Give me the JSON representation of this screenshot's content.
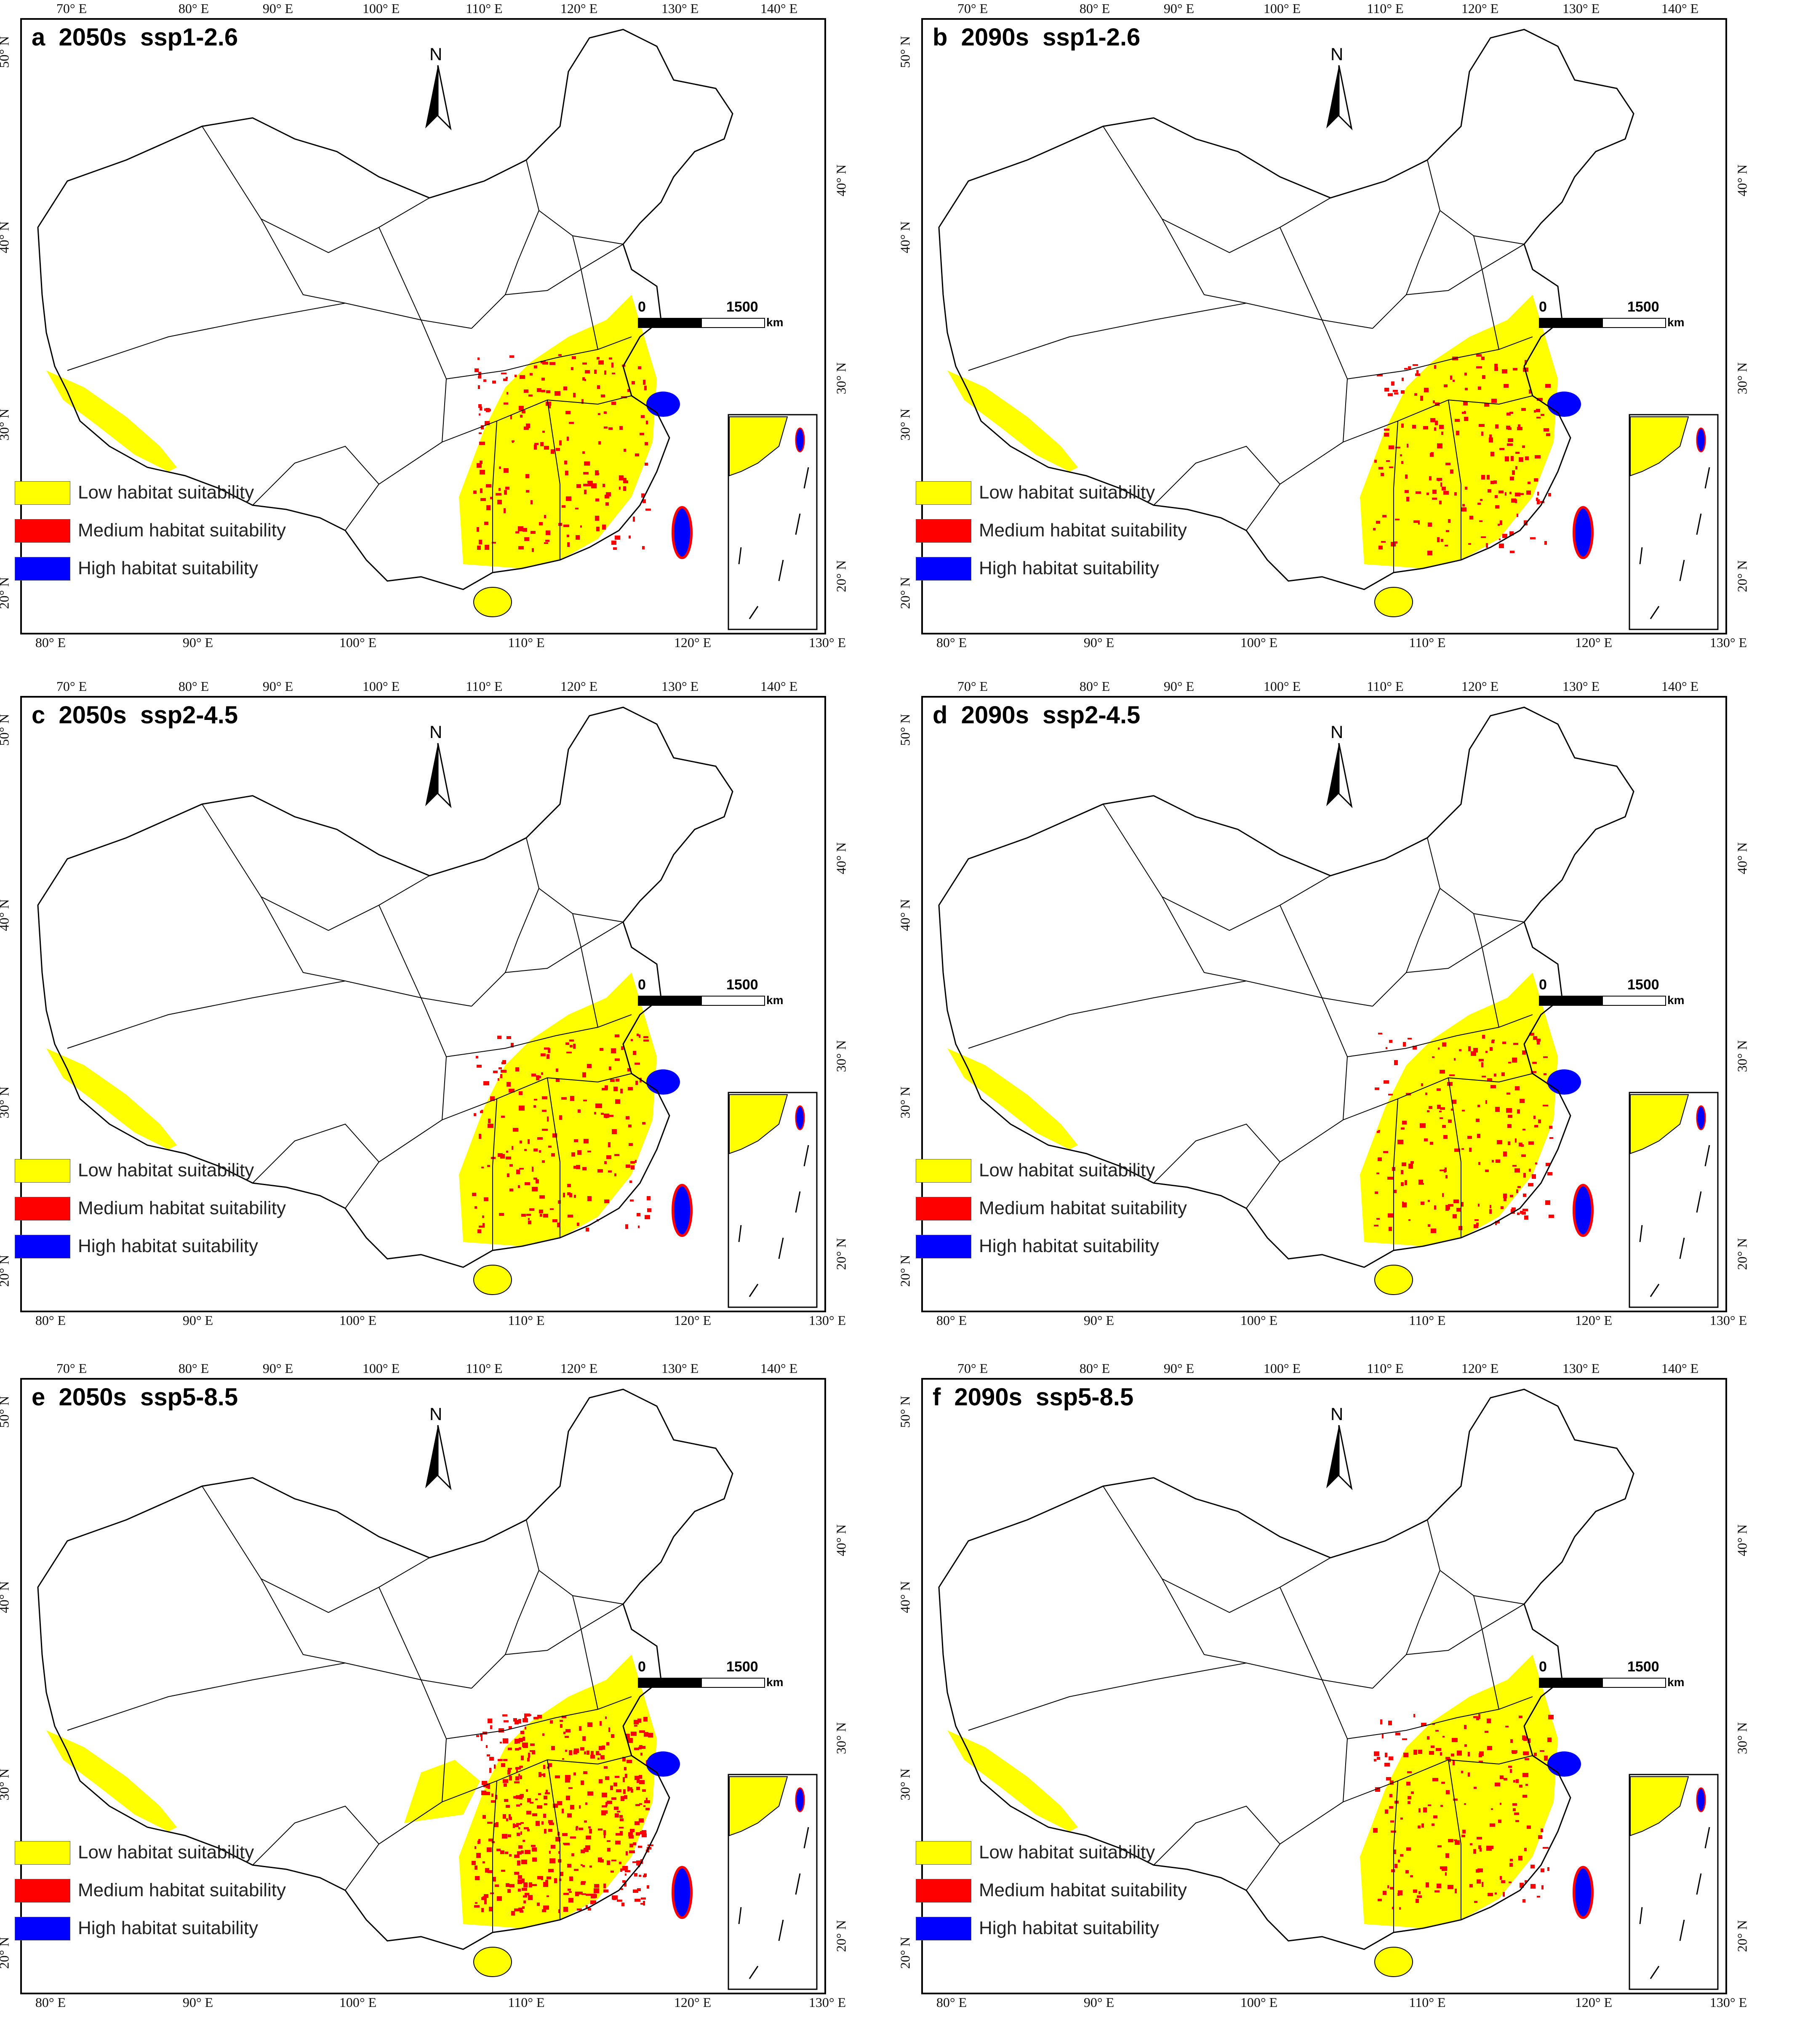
{
  "figure": {
    "panels": [
      {
        "id": "a",
        "title": "a  2050s  ssp1-2.6"
      },
      {
        "id": "b",
        "title": "b  2090s  ssp1-2.6"
      },
      {
        "id": "c",
        "title": "c  2050s  ssp2-4.5"
      },
      {
        "id": "d",
        "title": "d  2090s  ssp2-4.5"
      },
      {
        "id": "e",
        "title": "e  2050s  ssp5-8.5"
      },
      {
        "id": "f",
        "title": "f  2090s  ssp5-8.5"
      }
    ],
    "top_ticks": [
      "70° E",
      "80° E",
      "90° E",
      "100° E",
      "110° E",
      "120° E",
      "130° E",
      "140° E"
    ],
    "bottom_ticks": [
      "80° E",
      "90° E",
      "100° E",
      "110° E",
      "120° E",
      "130° E"
    ],
    "left_ticks": [
      "50° N",
      "40° N",
      "30° N",
      "20° N"
    ],
    "right_ticks": [
      "40° N",
      "30° N",
      "20° N"
    ],
    "legend": [
      {
        "label": "Low habitat suitability",
        "color": "#ffff00"
      },
      {
        "label": "Medium habitat suitability",
        "color": "#ff0000"
      },
      {
        "label": "High habitat suitability",
        "color": "#0000ff"
      }
    ],
    "scalebar": {
      "zero": "0",
      "max": "1500",
      "unit": "km"
    },
    "north_label": "N"
  }
}
